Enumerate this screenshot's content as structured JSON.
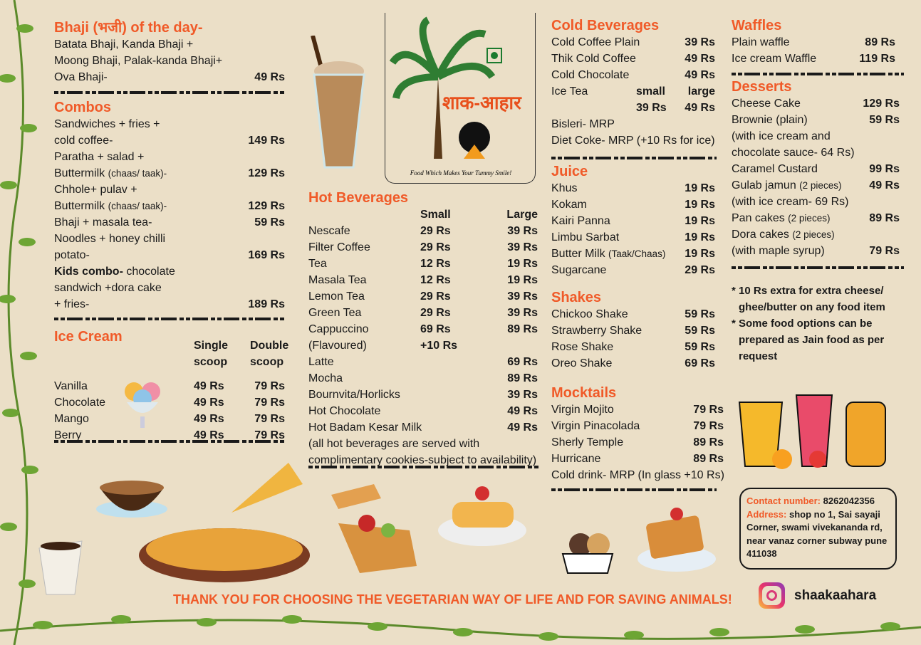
{
  "colors": {
    "accent": "#f05a28",
    "background": "#ebdfc7",
    "text": "#1a1a1a"
  },
  "logo": {
    "text": "शाक-आहार",
    "tagline": "Food Which Makes Your Tummy Smile!"
  },
  "sections": {
    "bhaji": {
      "title": "Bhaji (भजी) of the day-",
      "rows": [
        {
          "c": [
            "Batata Bhaji, Kanda Bhaji +",
            ""
          ]
        },
        {
          "c": [
            "Moong Bhaji, Palak-kanda Bhaji+",
            ""
          ]
        },
        {
          "c": [
            "Ova Bhaji-",
            "49 Rs"
          ]
        }
      ]
    },
    "combos": {
      "title": "Combos",
      "rows": [
        {
          "c": [
            "Sandwiches + fries +",
            ""
          ]
        },
        {
          "c": [
            "cold coffee-",
            "149 Rs"
          ]
        },
        {
          "c": [
            "Paratha + salad +",
            ""
          ]
        },
        {
          "c": [
            "Buttermilk",
            "129 Rs"
          ],
          "small": "(chaas/ taak)-"
        },
        {
          "c": [
            "Chhole+ pulav +",
            ""
          ]
        },
        {
          "c": [
            "Buttermilk",
            "129 Rs"
          ],
          "small": "(chaas/ taak)-"
        },
        {
          "c": [
            "Bhaji + masala tea-",
            "59 Rs"
          ]
        },
        {
          "c": [
            "Noodles + honey chilli",
            ""
          ]
        },
        {
          "c": [
            "potato-",
            "169 Rs"
          ]
        },
        {
          "c": [
            "chocolate",
            ""
          ],
          "bold": "Kids combo-"
        },
        {
          "c": [
            "sandwich +dora cake",
            ""
          ]
        },
        {
          "c": [
            "+ fries-",
            "189 Rs"
          ]
        }
      ]
    },
    "icecream": {
      "title": "Ice Cream",
      "header": [
        [
          "",
          "Single",
          "Double"
        ],
        [
          "",
          "scoop",
          "scoop"
        ]
      ],
      "rows": [
        {
          "c": [
            "Vanilla",
            "49 Rs",
            "79 Rs"
          ]
        },
        {
          "c": [
            "Chocolate",
            "49 Rs",
            "79 Rs"
          ]
        },
        {
          "c": [
            "Mango",
            "49 Rs",
            "79 Rs"
          ]
        },
        {
          "c": [
            "Berry",
            "49 Rs",
            "79 Rs"
          ]
        }
      ]
    },
    "hot": {
      "title": "Hot Beverages",
      "rows": [
        {
          "c": [
            "",
            "Small",
            "Large"
          ]
        },
        {
          "c": [
            "Nescafe",
            "29 Rs",
            "39 Rs"
          ]
        },
        {
          "c": [
            "Filter Coffee",
            "29 Rs",
            "39 Rs"
          ]
        },
        {
          "c": [
            "Tea",
            "12 Rs",
            "19 Rs"
          ]
        },
        {
          "c": [
            "Masala Tea",
            "12 Rs",
            "19 Rs"
          ]
        },
        {
          "c": [
            "Lemon Tea",
            "29 Rs",
            "39 Rs"
          ]
        },
        {
          "c": [
            "Green Tea",
            "29 Rs",
            "39 Rs"
          ]
        },
        {
          "c": [
            "Cappuccino",
            "69 Rs",
            "89 Rs"
          ]
        },
        {
          "c": [
            "(Flavoured)",
            "+10 Rs",
            ""
          ]
        },
        {
          "c": [
            "Latte",
            "",
            "69 Rs"
          ]
        },
        {
          "c": [
            "Mocha",
            "",
            "89 Rs"
          ]
        },
        {
          "c": [
            "Bournvita/Horlicks",
            "",
            "39 Rs"
          ]
        },
        {
          "c": [
            "Hot Chocolate",
            "",
            "49 Rs"
          ]
        },
        {
          "c": [
            "Hot Badam Kesar Milk",
            "",
            "49 Rs"
          ]
        },
        {
          "c": [
            "(all hot beverages are served with"
          ]
        },
        {
          "c": [
            "complimentary cookies-subject to availability)"
          ]
        }
      ]
    },
    "cold": {
      "title": "Cold Beverages",
      "rows": [
        {
          "c": [
            "Cold Coffee Plain",
            "39 Rs"
          ]
        },
        {
          "c": [
            "Thik Cold Coffee",
            "49 Rs"
          ]
        },
        {
          "c": [
            "Cold Chocolate",
            "49 Rs"
          ]
        },
        {
          "c": [
            "Ice Tea",
            "small",
            "large"
          ],
          "ice": true
        },
        {
          "c": [
            "",
            "39 Rs",
            "49 Rs"
          ],
          "ice": true
        },
        {
          "c": [
            "Bisleri- MRP",
            ""
          ]
        },
        {
          "c": [
            "Diet Coke- MRP (+10 Rs for ice)",
            ""
          ]
        }
      ]
    },
    "juice": {
      "title": "Juice",
      "rows": [
        {
          "c": [
            "Khus",
            "19 Rs"
          ]
        },
        {
          "c": [
            "Kokam",
            "19 Rs"
          ]
        },
        {
          "c": [
            "Kairi Panna",
            "19 Rs"
          ]
        },
        {
          "c": [
            "Limbu Sarbat",
            "19 Rs"
          ]
        },
        {
          "c": [
            "Butter Milk",
            "19 Rs"
          ],
          "small": "(Taak/Chaas)"
        },
        {
          "c": [
            "Sugarcane",
            "29 Rs"
          ]
        }
      ]
    },
    "shakes": {
      "title": "Shakes",
      "rows": [
        {
          "c": [
            "Chickoo Shake",
            "59 Rs"
          ]
        },
        {
          "c": [
            "Strawberry Shake",
            "59 Rs"
          ]
        },
        {
          "c": [
            "Rose Shake",
            "59 Rs"
          ]
        },
        {
          "c": [
            "Oreo Shake",
            "69 Rs"
          ]
        }
      ]
    },
    "mocktails": {
      "title": "Mocktails",
      "rows": [
        {
          "c": [
            "Virgin Mojito",
            "79 Rs"
          ]
        },
        {
          "c": [
            "Virgin Pinacolada",
            "79 Rs"
          ]
        },
        {
          "c": [
            "Sherly Temple",
            "89 Rs"
          ]
        },
        {
          "c": [
            "Hurricane",
            "89 Rs"
          ]
        },
        {
          "c": [
            "Cold drink- MRP (In glass +10 Rs)",
            ""
          ]
        }
      ]
    },
    "waffles": {
      "title": "Waffles",
      "rows": [
        {
          "c": [
            "Plain waffle",
            "89 Rs"
          ]
        },
        {
          "c": [
            "Ice cream Waffle",
            "119 Rs"
          ]
        }
      ]
    },
    "desserts": {
      "title": "Desserts",
      "rows": [
        {
          "c": [
            "Cheese Cake",
            "129 Rs"
          ]
        },
        {
          "c": [
            "Brownie (plain)",
            "59 Rs"
          ]
        },
        {
          "c": [
            "(with ice cream and",
            ""
          ]
        },
        {
          "c": [
            "chocolate sauce- 64 Rs)",
            ""
          ]
        },
        {
          "c": [
            "Caramel Custard",
            "99 Rs"
          ]
        },
        {
          "c": [
            "Gulab jamun",
            "49 Rs"
          ],
          "small": "(2 pieces)"
        },
        {
          "c": [
            "(with ice cream- 69 Rs)",
            ""
          ]
        },
        {
          "c": [
            "Pan cakes",
            "89 Rs"
          ],
          "small": "(2 pieces)"
        },
        {
          "c": [
            "Dora cakes",
            ""
          ],
          "small": "(2 pieces)"
        },
        {
          "c": [
            "(with maple syrup)",
            "79 Rs"
          ]
        }
      ]
    }
  },
  "notes": [
    "* 10 Rs extra for extra cheese/ ghee/butter on any food item",
    "* Some food options can be prepared as Jain food as per request"
  ],
  "contact": {
    "number_label": "Contact number:",
    "number": "8262042356",
    "address_label": "Address:",
    "address": "shop no 1, Sai sayaji Corner, swami vivekananda rd, near vanaz corner subway pune 411038"
  },
  "footer": {
    "message": "THANK YOU FOR CHOOSING THE VEGETARIAN WAY OF LIFE AND FOR SAVING ANIMALS!",
    "instagram_icon": "instagram-icon",
    "handle": "shaakaahara"
  }
}
